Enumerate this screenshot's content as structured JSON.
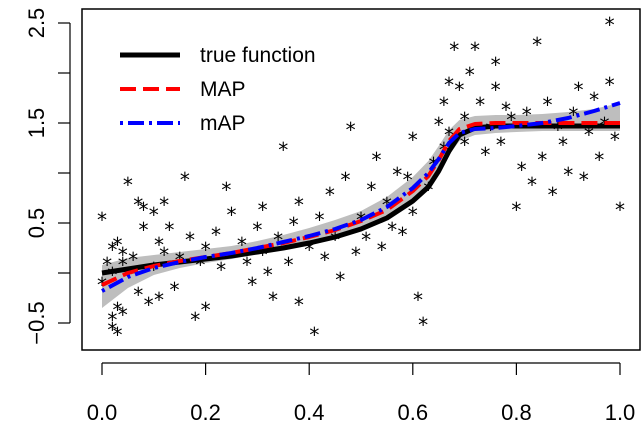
{
  "chart_data": {
    "type": "scatter",
    "title": "",
    "xlabel": "",
    "ylabel": "",
    "xlim": [
      -0.04,
      1.0
    ],
    "ylim": [
      -1.0,
      2.6
    ],
    "x_ticks": [
      0.0,
      0.2,
      0.4,
      0.6,
      0.8,
      1.0
    ],
    "x_tick_labels": [
      "0.0",
      "0.2",
      "0.4",
      "0.6",
      "0.8",
      "1.0"
    ],
    "y_ticks": [
      -0.5,
      0.0,
      0.5,
      1.0,
      1.5,
      2.0,
      2.5
    ],
    "y_tick_labels": [
      "−0.5",
      "",
      "0.5",
      "",
      "1.5",
      "",
      "2.5"
    ],
    "grid": false,
    "legend_position": "top-left",
    "colors": {
      "true_function": "#000000",
      "map": "#ff0000",
      "map_alt": "#0000ff",
      "band": "#bebebe",
      "points": "#000000"
    },
    "series": [
      {
        "name": "true function",
        "style": "solid",
        "color": "#000000",
        "x": [
          0.0,
          0.05,
          0.1,
          0.15,
          0.2,
          0.25,
          0.3,
          0.35,
          0.4,
          0.45,
          0.5,
          0.55,
          0.6,
          0.63,
          0.65,
          0.67,
          0.69,
          0.72,
          0.76,
          0.8,
          0.85,
          0.9,
          0.95,
          1.0
        ],
        "y": [
          0.0,
          0.04,
          0.08,
          0.11,
          0.14,
          0.17,
          0.21,
          0.25,
          0.3,
          0.36,
          0.44,
          0.55,
          0.72,
          0.86,
          1.02,
          1.22,
          1.38,
          1.45,
          1.47,
          1.47,
          1.47,
          1.47,
          1.47,
          1.47
        ]
      },
      {
        "name": "MAP",
        "style": "dashed",
        "color": "#ff0000",
        "x": [
          0.0,
          0.05,
          0.1,
          0.15,
          0.2,
          0.25,
          0.3,
          0.35,
          0.4,
          0.45,
          0.5,
          0.55,
          0.6,
          0.63,
          0.65,
          0.67,
          0.69,
          0.72,
          0.76,
          0.8,
          0.85,
          0.9,
          0.95,
          1.0
        ],
        "y": [
          -0.12,
          0.0,
          0.07,
          0.12,
          0.16,
          0.2,
          0.25,
          0.3,
          0.36,
          0.43,
          0.52,
          0.63,
          0.82,
          0.97,
          1.13,
          1.32,
          1.44,
          1.49,
          1.5,
          1.5,
          1.5,
          1.5,
          1.5,
          1.5
        ]
      },
      {
        "name": "mAP",
        "style": "dotdash",
        "color": "#0000ff",
        "x": [
          0.0,
          0.05,
          0.1,
          0.15,
          0.2,
          0.25,
          0.3,
          0.35,
          0.4,
          0.45,
          0.5,
          0.55,
          0.6,
          0.63,
          0.65,
          0.67,
          0.69,
          0.72,
          0.76,
          0.8,
          0.85,
          0.9,
          0.95,
          1.0
        ],
        "y": [
          -0.18,
          -0.04,
          0.05,
          0.11,
          0.16,
          0.2,
          0.25,
          0.31,
          0.37,
          0.44,
          0.53,
          0.66,
          0.85,
          1.0,
          1.14,
          1.3,
          1.4,
          1.44,
          1.45,
          1.47,
          1.5,
          1.55,
          1.62,
          1.7
        ]
      }
    ],
    "band": {
      "x": [
        0.0,
        0.05,
        0.1,
        0.15,
        0.2,
        0.25,
        0.3,
        0.35,
        0.4,
        0.45,
        0.5,
        0.55,
        0.6,
        0.63,
        0.65,
        0.67,
        0.69,
        0.72,
        0.76,
        0.8,
        0.85,
        0.9,
        0.95,
        1.0
      ],
      "lower": [
        -0.35,
        -0.15,
        -0.02,
        0.05,
        0.1,
        0.14,
        0.19,
        0.24,
        0.29,
        0.35,
        0.43,
        0.53,
        0.7,
        0.84,
        1.0,
        1.18,
        1.32,
        1.38,
        1.4,
        1.41,
        1.42,
        1.42,
        1.42,
        1.42
      ],
      "upper": [
        0.08,
        0.15,
        0.18,
        0.21,
        0.24,
        0.27,
        0.32,
        0.38,
        0.45,
        0.53,
        0.62,
        0.76,
        0.96,
        1.12,
        1.27,
        1.43,
        1.53,
        1.57,
        1.58,
        1.58,
        1.59,
        1.61,
        1.64,
        1.7
      ]
    },
    "points": {
      "x": [
        0.0,
        0.0,
        0.01,
        0.02,
        0.02,
        0.02,
        0.02,
        0.03,
        0.03,
        0.03,
        0.04,
        0.04,
        0.04,
        0.05,
        0.05,
        0.06,
        0.07,
        0.07,
        0.08,
        0.08,
        0.09,
        0.1,
        0.1,
        0.11,
        0.11,
        0.12,
        0.12,
        0.13,
        0.14,
        0.15,
        0.16,
        0.17,
        0.18,
        0.19,
        0.2,
        0.2,
        0.22,
        0.23,
        0.24,
        0.25,
        0.27,
        0.28,
        0.29,
        0.3,
        0.31,
        0.31,
        0.32,
        0.33,
        0.34,
        0.35,
        0.36,
        0.37,
        0.38,
        0.38,
        0.4,
        0.41,
        0.42,
        0.43,
        0.44,
        0.45,
        0.46,
        0.47,
        0.48,
        0.49,
        0.5,
        0.51,
        0.52,
        0.53,
        0.54,
        0.55,
        0.56,
        0.57,
        0.58,
        0.59,
        0.6,
        0.6,
        0.61,
        0.62,
        0.63,
        0.64,
        0.65,
        0.66,
        0.66,
        0.67,
        0.67,
        0.68,
        0.69,
        0.7,
        0.7,
        0.71,
        0.72,
        0.73,
        0.74,
        0.75,
        0.76,
        0.76,
        0.77,
        0.78,
        0.79,
        0.8,
        0.81,
        0.82,
        0.83,
        0.84,
        0.85,
        0.86,
        0.87,
        0.88,
        0.89,
        0.9,
        0.91,
        0.92,
        0.93,
        0.94,
        0.95,
        0.96,
        0.97,
        0.98,
        0.99,
        1.0,
        0.98
      ],
      "y": [
        0.55,
        -0.1,
        0.1,
        -0.55,
        -0.45,
        0.25,
        0.0,
        0.3,
        -0.6,
        -0.35,
        0.1,
        0.2,
        -0.4,
        0.9,
        0.0,
        0.15,
        -0.2,
        0.7,
        0.65,
        0.45,
        -0.3,
        0.6,
        0.05,
        0.3,
        -0.25,
        0.7,
        0.2,
        0.45,
        -0.15,
        0.15,
        0.95,
        0.35,
        -0.45,
        0.1,
        0.25,
        -0.35,
        0.4,
        0.05,
        0.85,
        0.6,
        0.3,
        0.1,
        -0.1,
        0.45,
        0.2,
        0.65,
        0.0,
        -0.25,
        0.35,
        1.25,
        0.1,
        0.5,
        0.7,
        -0.3,
        0.25,
        -0.6,
        0.55,
        0.15,
        0.8,
        0.35,
        -0.05,
        0.95,
        1.45,
        0.2,
        0.55,
        0.35,
        0.85,
        1.15,
        0.25,
        0.7,
        0.45,
        1.0,
        0.4,
        0.95,
        1.35,
        0.6,
        -0.25,
        -0.5,
        0.85,
        1.1,
        1.5,
        1.7,
        1.25,
        1.9,
        1.4,
        2.25,
        1.85,
        1.55,
        1.3,
        2.0,
        2.25,
        1.7,
        1.2,
        1.45,
        2.1,
        1.85,
        1.3,
        1.65,
        1.55,
        0.65,
        1.05,
        1.6,
        0.9,
        2.3,
        1.15,
        1.7,
        0.8,
        1.45,
        1.3,
        1.0,
        1.6,
        1.85,
        0.95,
        1.4,
        1.75,
        1.15,
        1.5,
        1.9,
        1.35,
        0.65,
        2.5
      ]
    }
  }
}
